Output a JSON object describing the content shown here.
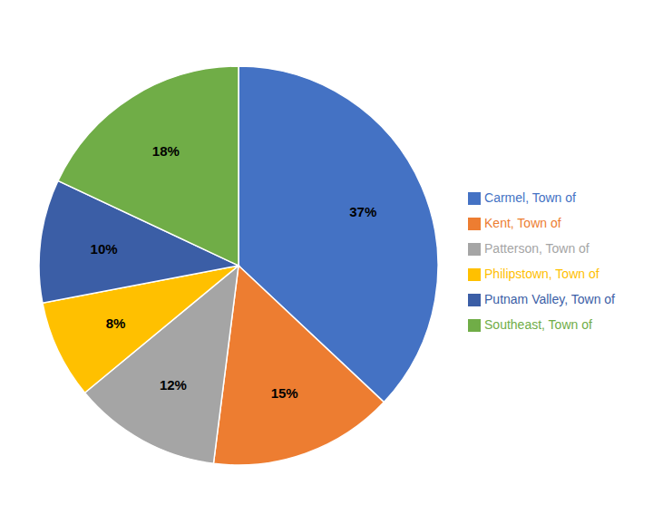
{
  "chart_data": {
    "type": "pie",
    "categories": [
      "Carmel, Town of",
      "Kent, Town of",
      "Patterson, Town of",
      "Philipstown, Town of",
      "Putnam Valley, Town of",
      "Southeast, Town of"
    ],
    "values": [
      37,
      15,
      12,
      8,
      10,
      18
    ],
    "value_labels": [
      "37%",
      "15%",
      "12%",
      "8%",
      "10%",
      "18%"
    ],
    "colors": [
      "#4472C4",
      "#ED7D31",
      "#A5A5A5",
      "#FFC000",
      "#3B5EA6",
      "#70AD47"
    ],
    "data_labels": true,
    "legend": "right"
  }
}
